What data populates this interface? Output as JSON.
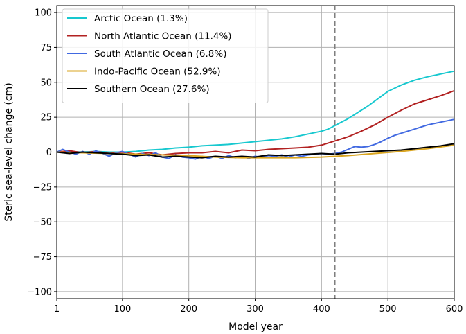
{
  "chart_data": {
    "type": "line",
    "xlabel": "Model year",
    "ylabel": "Steric sea-level change (cm)",
    "xlim": [
      1,
      600
    ],
    "ylim": [
      -105,
      105
    ],
    "xticks": [
      1,
      100,
      200,
      300,
      400,
      500,
      600
    ],
    "yticks": [
      -100,
      -75,
      -50,
      -25,
      0,
      25,
      50,
      75,
      100
    ],
    "xtick_labels": [
      "1",
      "100",
      "200",
      "300",
      "400",
      "500",
      "600"
    ],
    "ytick_labels": [
      "−100",
      "−75",
      "−50",
      "−25",
      "0",
      "25",
      "50",
      "75",
      "100"
    ],
    "grid": true,
    "legend_position": "upper-left",
    "vline": {
      "x": 420,
      "style": "dashed",
      "color": "#7f7f7f"
    },
    "series": [
      {
        "name": "Arctic Ocean (1.3%)",
        "color": "#17c8cf",
        "x": [
          1,
          20,
          40,
          60,
          80,
          100,
          120,
          140,
          160,
          180,
          200,
          220,
          240,
          260,
          280,
          300,
          320,
          340,
          360,
          380,
          400,
          410,
          420,
          430,
          440,
          450,
          460,
          470,
          480,
          490,
          500,
          520,
          540,
          560,
          580,
          600
        ],
        "y": [
          0,
          0.5,
          0,
          0.5,
          0,
          0,
          0.5,
          1.5,
          2,
          3,
          3.5,
          4.5,
          5,
          5.5,
          6.5,
          7.5,
          8.5,
          9.5,
          11,
          13,
          15,
          16.5,
          19,
          21.5,
          24,
          27,
          30,
          33,
          36.5,
          40,
          43.5,
          48,
          51.5,
          54,
          56,
          58
        ]
      },
      {
        "name": "North Atlantic Ocean (11.4%)",
        "color": "#b22222",
        "x": [
          1,
          20,
          40,
          60,
          80,
          100,
          120,
          140,
          160,
          180,
          200,
          220,
          240,
          260,
          280,
          300,
          320,
          340,
          360,
          380,
          400,
          420,
          440,
          460,
          480,
          500,
          520,
          540,
          560,
          580,
          600
        ],
        "y": [
          0,
          1,
          -0.5,
          0.5,
          -1,
          0,
          -1.5,
          -0.5,
          -2,
          -1,
          -0.5,
          -0.5,
          0.5,
          -0.5,
          1.5,
          1,
          2,
          2.5,
          3,
          3.5,
          5,
          8,
          11,
          15,
          19.5,
          25,
          30,
          34.5,
          37.5,
          40.5,
          44
        ]
      },
      {
        "name": "South Atlantic Ocean (6.8%)",
        "color": "#4169e1",
        "x": [
          1,
          10,
          20,
          30,
          40,
          50,
          60,
          70,
          80,
          90,
          100,
          110,
          120,
          130,
          140,
          150,
          160,
          170,
          180,
          190,
          200,
          210,
          220,
          230,
          240,
          250,
          260,
          270,
          280,
          290,
          300,
          310,
          320,
          330,
          340,
          350,
          360,
          370,
          380,
          390,
          400,
          410,
          420,
          430,
          440,
          450,
          460,
          470,
          480,
          490,
          500,
          510,
          520,
          530,
          540,
          550,
          560,
          570,
          580,
          590,
          600
        ],
        "y": [
          0,
          2,
          0,
          -1.5,
          0.5,
          -1.5,
          1,
          -1,
          -3,
          -0.5,
          0.5,
          -1.5,
          -3.5,
          -1,
          -2.5,
          -0.5,
          -3.5,
          -4.5,
          -2,
          -3.5,
          -4,
          -5,
          -3,
          -4.5,
          -3,
          -4.5,
          -2.5,
          -4,
          -3,
          -4.5,
          -3,
          -3.5,
          -2.5,
          -3,
          -2,
          -3.5,
          -2,
          -3,
          -2,
          -1.5,
          -1,
          -1.5,
          -1,
          0,
          2,
          4,
          3.5,
          4,
          5.5,
          7.5,
          10,
          12,
          13.5,
          15,
          16.5,
          18,
          19.5,
          20.5,
          21.5,
          22.5,
          23.5
        ]
      },
      {
        "name": "Indo-Pacific Ocean (52.9%)",
        "color": "#daa520",
        "x": [
          1,
          40,
          80,
          120,
          160,
          200,
          240,
          280,
          320,
          360,
          400,
          440,
          480,
          520,
          560,
          600
        ],
        "y": [
          0,
          -0.5,
          -1,
          -1.5,
          -2,
          -2.5,
          -3.5,
          -4,
          -4,
          -4,
          -3.5,
          -2.5,
          -1,
          0.5,
          2.5,
          5
        ]
      },
      {
        "name": "Southern Ocean (27.6%)",
        "color": "#000000",
        "x": [
          1,
          20,
          40,
          60,
          80,
          100,
          120,
          140,
          160,
          180,
          200,
          220,
          240,
          260,
          280,
          300,
          320,
          340,
          360,
          380,
          400,
          420,
          440,
          460,
          480,
          500,
          520,
          540,
          560,
          580,
          600
        ],
        "y": [
          0,
          -1,
          0,
          -0.5,
          -1,
          -1.5,
          -2.5,
          -2,
          -3.5,
          -3,
          -3.5,
          -4,
          -3,
          -3.5,
          -3,
          -3.5,
          -2,
          -2.5,
          -2,
          -1.5,
          -1,
          -1.5,
          -0.5,
          0,
          0.5,
          1,
          1.5,
          2.5,
          3.5,
          4.5,
          6
        ]
      }
    ]
  }
}
